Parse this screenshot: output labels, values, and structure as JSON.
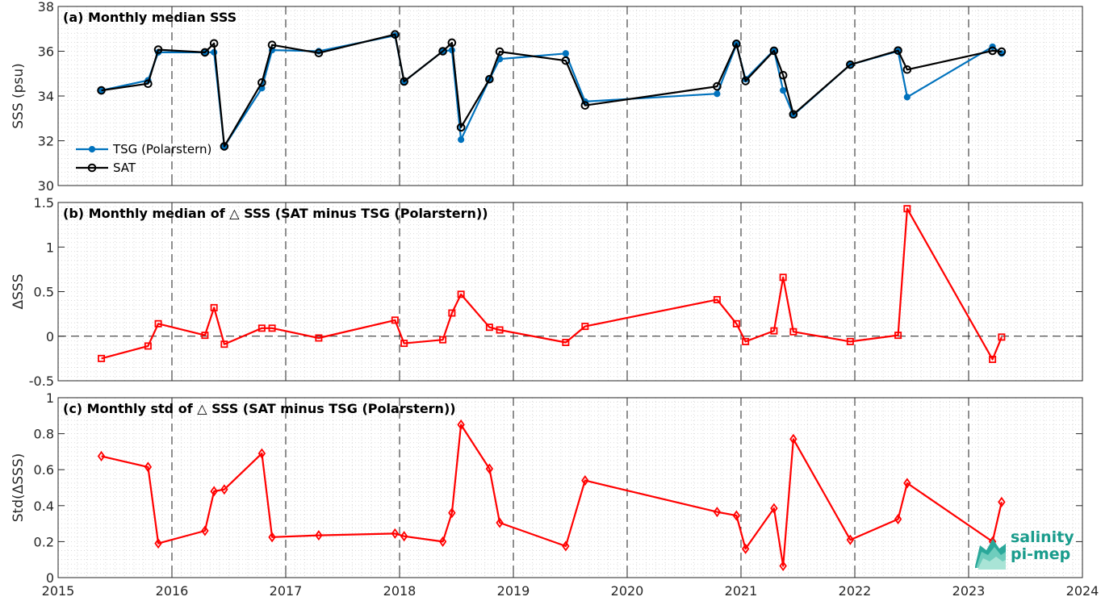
{
  "chart_data": [
    {
      "type": "line",
      "title": "(a) Monthly median SSS",
      "ylabel": "SSS (psu)",
      "xlabel": "",
      "xlim": [
        2015,
        2024
      ],
      "ylim": [
        30,
        38
      ],
      "yticks": [
        "30",
        "32",
        "34",
        "36",
        "38"
      ],
      "grid": true,
      "legend": "bottom-left",
      "series": [
        {
          "name": "TSG (Polarstern)",
          "color": "#0072BD",
          "marker": "dot",
          "x": [
            2015.38,
            2015.79,
            2015.88,
            2016.29,
            2016.37,
            2016.46,
            2016.79,
            2016.88,
            2017.29,
            2017.96,
            2018.04,
            2018.38,
            2018.46,
            2018.54,
            2018.79,
            2018.88,
            2019.46,
            2019.63,
            2020.79,
            2020.96,
            2021.04,
            2021.29,
            2021.37,
            2021.46,
            2021.96,
            2022.38,
            2022.46,
            2023.21,
            2023.29
          ],
          "y": [
            34.25,
            34.7,
            35.95,
            35.95,
            35.95,
            31.75,
            34.35,
            36.05,
            36.0,
            36.7,
            34.65,
            36.0,
            36.05,
            32.05,
            34.75,
            35.65,
            35.9,
            33.75,
            34.1,
            36.3,
            34.75,
            36.05,
            34.25,
            33.15,
            35.4,
            36.0,
            33.95,
            36.2,
            35.9
          ]
        },
        {
          "name": "SAT",
          "color": "#000000",
          "marker": "circle",
          "x": [
            2015.38,
            2015.79,
            2015.88,
            2016.29,
            2016.37,
            2016.46,
            2016.79,
            2016.88,
            2017.29,
            2017.96,
            2018.04,
            2018.38,
            2018.46,
            2018.54,
            2018.79,
            2018.88,
            2019.46,
            2019.63,
            2020.79,
            2020.96,
            2021.04,
            2021.29,
            2021.37,
            2021.46,
            2021.96,
            2022.38,
            2022.46,
            2023.21,
            2023.29
          ],
          "y": [
            34.25,
            34.55,
            36.07,
            35.95,
            36.35,
            31.75,
            34.6,
            36.28,
            35.92,
            36.75,
            34.65,
            36.0,
            36.38,
            32.6,
            34.75,
            35.98,
            35.58,
            33.58,
            34.43,
            36.33,
            34.67,
            36.02,
            34.93,
            33.18,
            35.4,
            36.03,
            35.18,
            36.02,
            35.98
          ]
        }
      ]
    },
    {
      "type": "line",
      "title": "(b) Monthly median of △ SSS (SAT minus TSG (Polarstern))",
      "ylabel": "ΔSSS",
      "xlabel": "",
      "xlim": [
        2015,
        2024
      ],
      "ylim": [
        -0.5,
        1.5
      ],
      "yticks": [
        "-0.5",
        "0",
        "0.5",
        "1",
        "1.5"
      ],
      "grid": true,
      "zero_line": true,
      "series": [
        {
          "color": "#FF0000",
          "marker": "square",
          "x": [
            2015.38,
            2015.79,
            2015.88,
            2016.29,
            2016.37,
            2016.46,
            2016.79,
            2016.88,
            2017.29,
            2017.96,
            2018.04,
            2018.38,
            2018.46,
            2018.54,
            2018.79,
            2018.88,
            2019.46,
            2019.63,
            2020.79,
            2020.96,
            2021.04,
            2021.29,
            2021.37,
            2021.46,
            2021.96,
            2022.38,
            2022.46,
            2023.21,
            2023.29
          ],
          "y": [
            -0.25,
            -0.11,
            0.14,
            0.01,
            0.32,
            -0.09,
            0.09,
            0.09,
            -0.02,
            0.18,
            -0.08,
            -0.04,
            0.26,
            0.47,
            0.1,
            0.07,
            -0.07,
            0.11,
            0.41,
            0.14,
            -0.06,
            0.06,
            0.66,
            0.05,
            -0.06,
            0.01,
            1.43,
            -0.26,
            -0.01
          ]
        }
      ]
    },
    {
      "type": "line",
      "title": "(c) Monthly std of △ SSS (SAT minus TSG (Polarstern))",
      "ylabel": "Std(ΔSSS)",
      "xlabel": "",
      "xlim": [
        2015,
        2024
      ],
      "ylim": [
        0,
        1
      ],
      "yticks": [
        "0",
        "0.2",
        "0.4",
        "0.6",
        "0.8",
        "1"
      ],
      "xticks": [
        "2015",
        "2016",
        "2017",
        "2018",
        "2019",
        "2020",
        "2021",
        "2022",
        "2023",
        "2024"
      ],
      "grid": true,
      "series": [
        {
          "color": "#FF0000",
          "marker": "diamond",
          "x": [
            2015.38,
            2015.79,
            2015.88,
            2016.29,
            2016.37,
            2016.46,
            2016.79,
            2016.88,
            2017.29,
            2017.96,
            2018.04,
            2018.38,
            2018.46,
            2018.54,
            2018.79,
            2018.88,
            2019.46,
            2019.63,
            2020.79,
            2020.96,
            2021.04,
            2021.29,
            2021.37,
            2021.46,
            2021.96,
            2022.38,
            2022.46,
            2023.21,
            2023.29
          ],
          "y": [
            0.675,
            0.615,
            0.19,
            0.26,
            0.48,
            0.49,
            0.69,
            0.225,
            0.235,
            0.245,
            0.23,
            0.2,
            0.36,
            0.85,
            0.605,
            0.305,
            0.175,
            0.54,
            0.365,
            0.345,
            0.16,
            0.385,
            0.065,
            0.77,
            0.21,
            0.325,
            0.525,
            0.2,
            0.42
          ]
        }
      ]
    }
  ],
  "logo": {
    "line1": "salinity",
    "line2": "pi-mep"
  }
}
